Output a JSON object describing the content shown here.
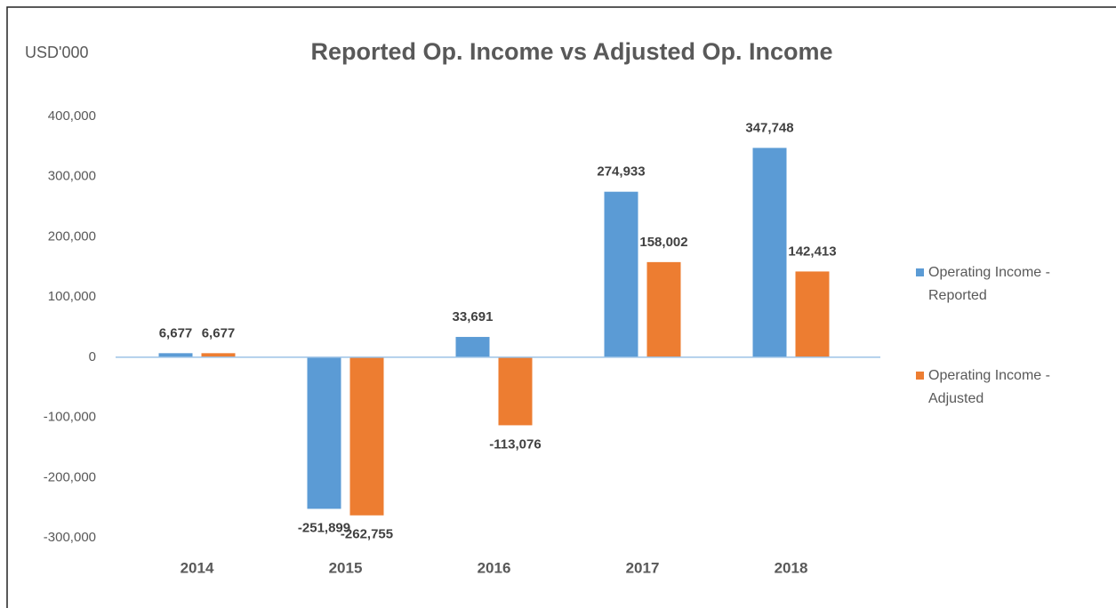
{
  "chart_data": {
    "type": "bar",
    "title": "Reported Op. Income vs Adjusted Op. Income",
    "y_axis_label": "USD'000",
    "categories": [
      "2014",
      "2015",
      "2016",
      "2017",
      "2018"
    ],
    "series": [
      {
        "name": "Operating Income - Reported",
        "color": "#5b9bd5",
        "values": [
          6677,
          -251899,
          33691,
          274933,
          347748
        ],
        "value_labels": [
          "6,677",
          "-251,899",
          "33,691",
          "274,933",
          "347,748"
        ]
      },
      {
        "name": "Operating Income - Adjusted",
        "color": "#ed7d31",
        "values": [
          6677,
          -262755,
          -113076,
          158002,
          142413
        ],
        "value_labels": [
          "6,677",
          "-262,755",
          "-113,076",
          "158,002",
          "142,413"
        ]
      }
    ],
    "ylim": [
      -300000,
      400000
    ],
    "yticks": [
      {
        "value": -300000,
        "label": "-300,000"
      },
      {
        "value": -200000,
        "label": "-200,000"
      },
      {
        "value": -100000,
        "label": "-100,000"
      },
      0,
      {
        "value": 100000,
        "label": "100,000"
      },
      {
        "value": 200000,
        "label": "200,000"
      },
      {
        "value": 300000,
        "label": "300,000"
      },
      {
        "value": 400000,
        "label": "400,000"
      }
    ],
    "grid": false,
    "legend": "right"
  }
}
